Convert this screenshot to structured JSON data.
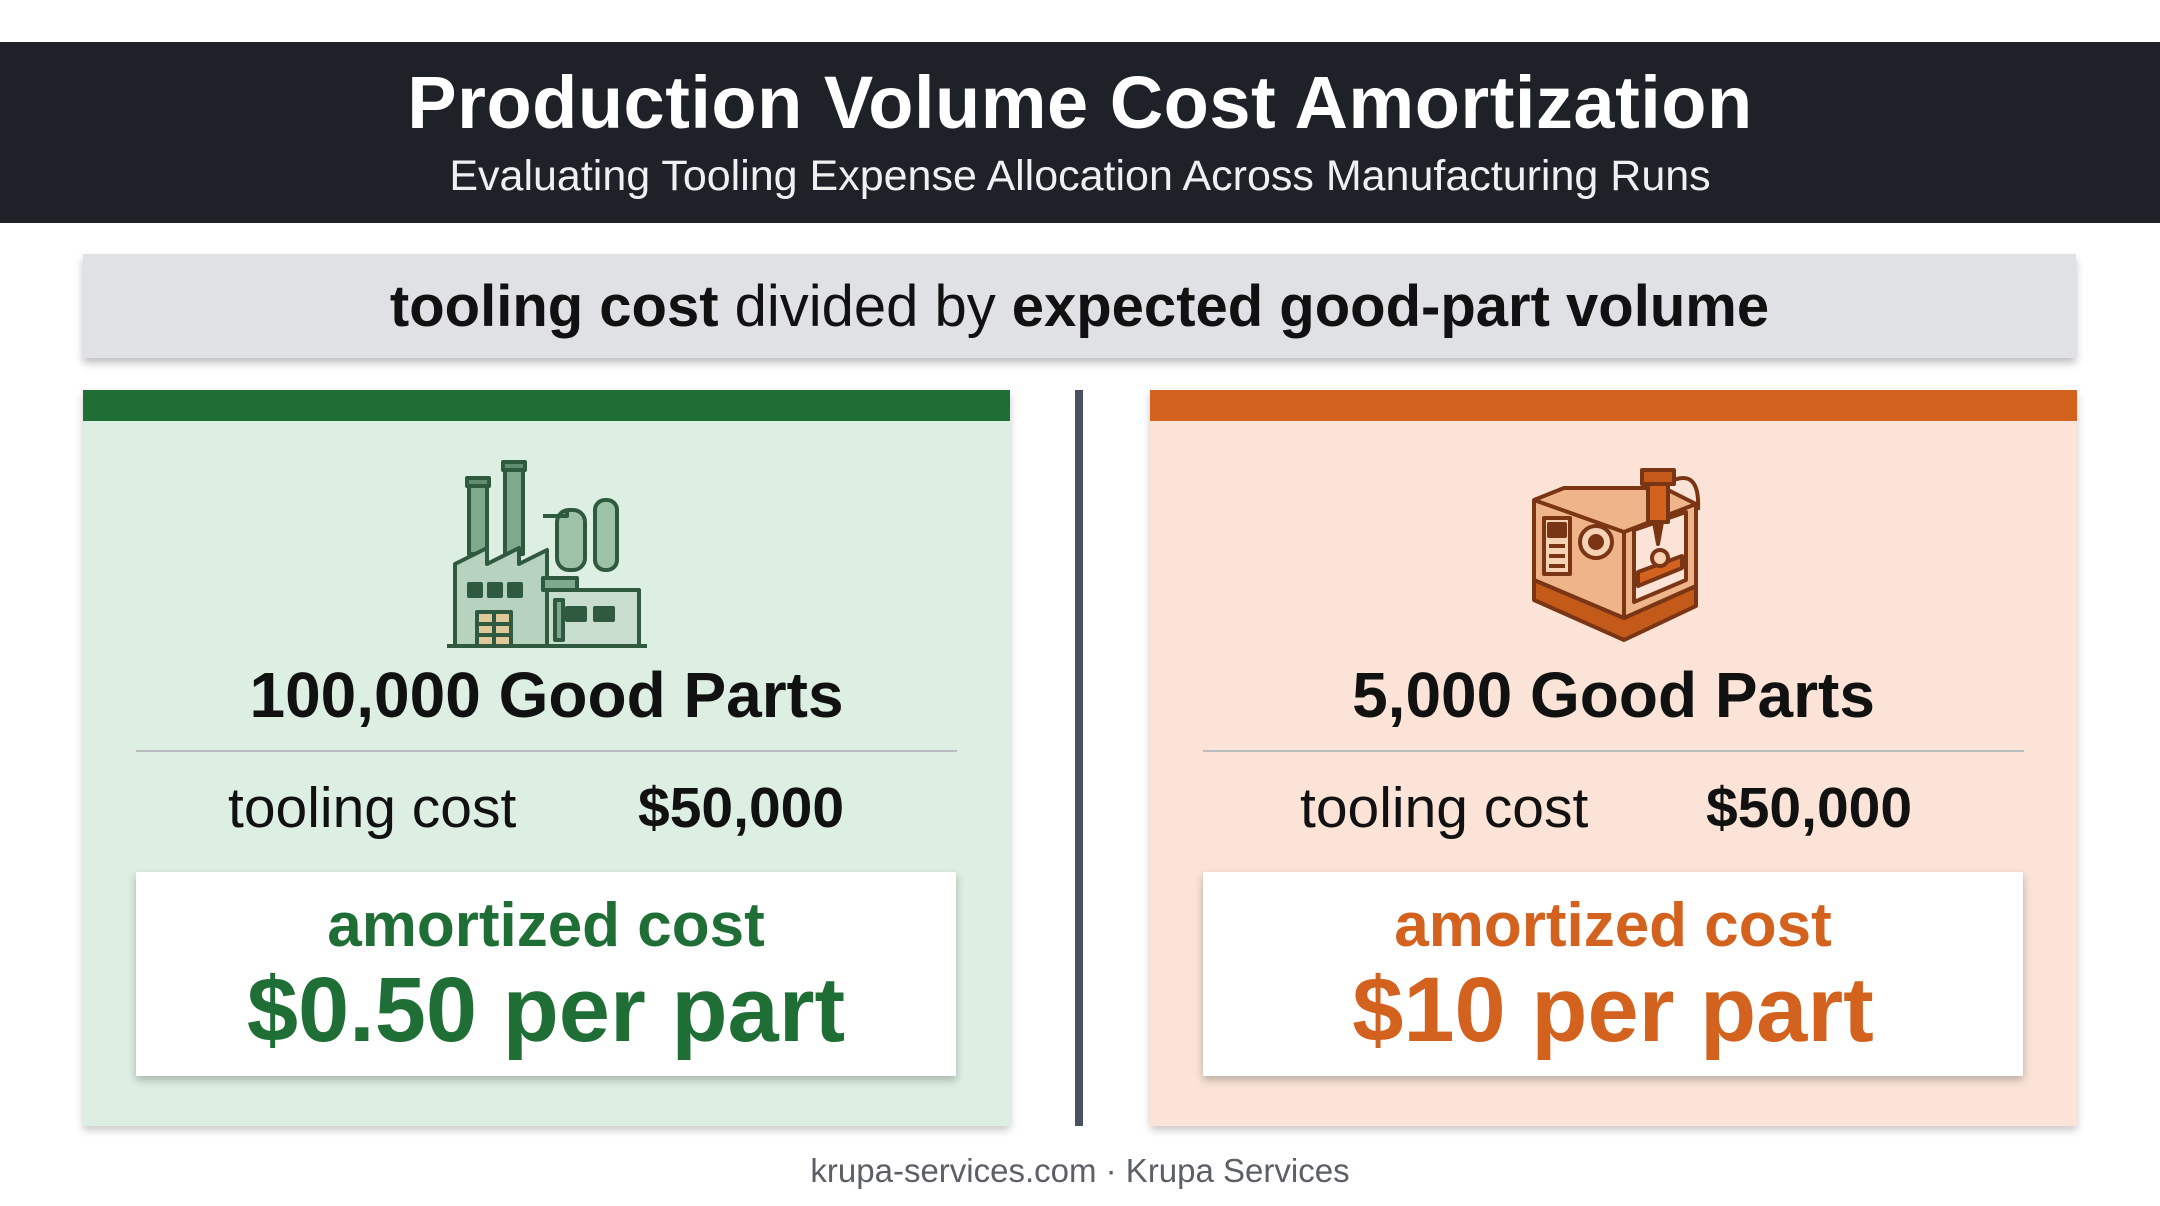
{
  "header": {
    "title": "Production Volume Cost Amortization",
    "subtitle": "Evaluating Tooling Expense Allocation Across Manufacturing Runs"
  },
  "formula": {
    "part1": "tooling cost",
    "part2": "divided by",
    "part3": "expected good-part volume"
  },
  "panels": [
    {
      "icon": "factory-icon",
      "accent_color": "#1f6e36",
      "background_color": "#ddeee2",
      "volume": "100,000 Good Parts",
      "tooling_label": "tooling cost",
      "tooling_value": "$50,000",
      "amortized_label": "amortized cost",
      "amortized_value": "$0.50 per part"
    },
    {
      "icon": "cnc-machine-icon",
      "accent_color": "#d4621f",
      "background_color": "#fbe4d7",
      "volume": "5,000 Good Parts",
      "tooling_label": "tooling cost",
      "tooling_value": "$50,000",
      "amortized_label": "amortized cost",
      "amortized_value": "$10 per part"
    }
  ],
  "footer": "krupa-services.com · Krupa Services"
}
